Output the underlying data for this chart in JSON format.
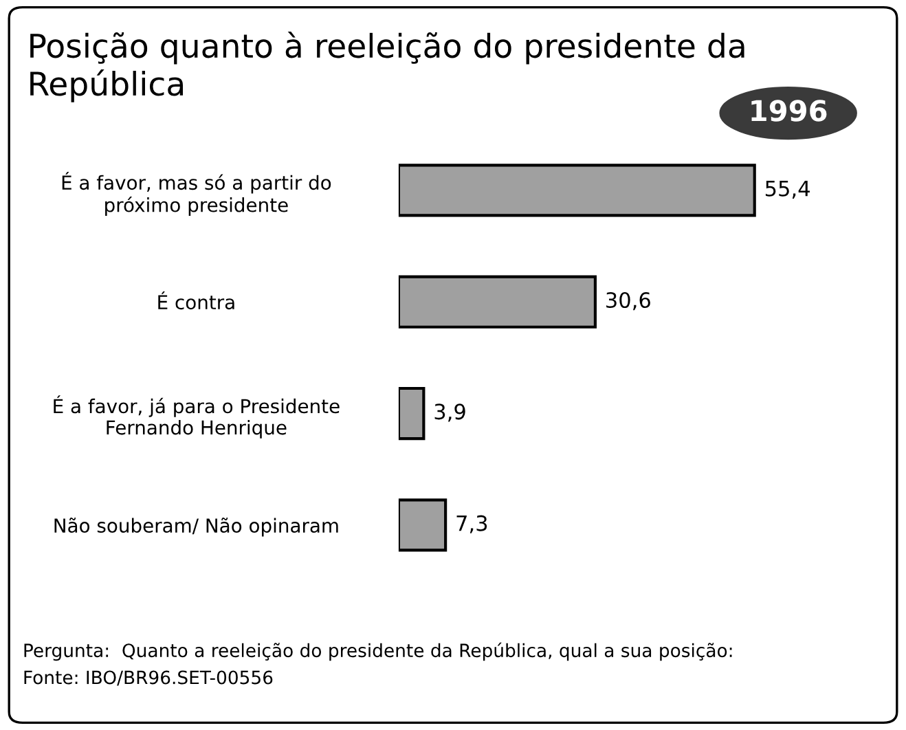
{
  "chart_data": {
    "type": "bar",
    "orientation": "horizontal",
    "title": "Posição quanto à reeleição do presidente da República",
    "subtitle": "1996",
    "categories": [
      "É a favor, mas só a partir do\npróximo presidente",
      "É contra",
      "É a favor, já para o Presidente\nFernando Henrique",
      "Não souberam/ Não opinaram"
    ],
    "values": [
      55.4,
      30.6,
      3.9,
      7.3
    ],
    "value_labels": [
      "55,4",
      "30,6",
      "3,9",
      "7,3"
    ],
    "color": "#a0a0a0",
    "grid": false,
    "legend": false,
    "annotations": [
      "Pergunta:  Quanto a reeleição do presidente da República, qual a sua posição:",
      "Fonte: IBO/BR96.SET-00556"
    ]
  }
}
